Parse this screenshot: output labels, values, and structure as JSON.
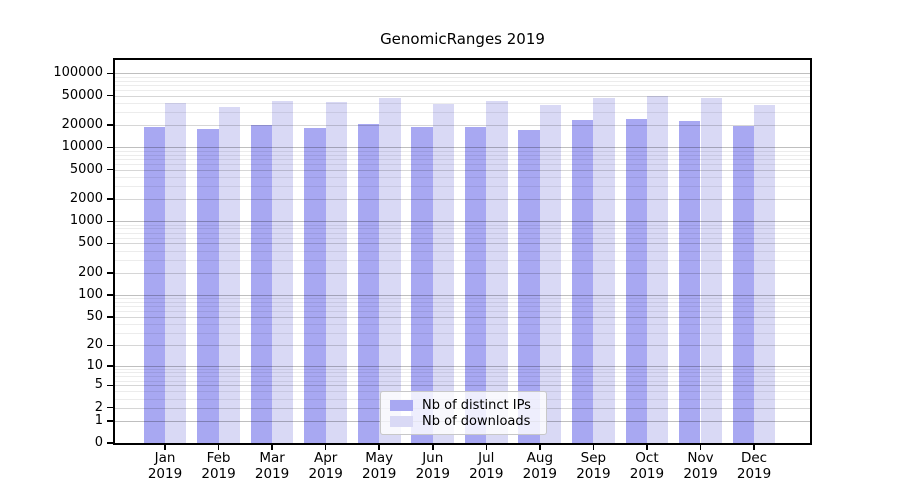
{
  "title": "GenomicRanges 2019",
  "chart_data": {
    "type": "bar",
    "title": "GenomicRanges 2019",
    "categories": [
      "Jan 2019",
      "Feb 2019",
      "Mar 2019",
      "Apr 2019",
      "May 2019",
      "Jun 2019",
      "Jul 2019",
      "Aug 2019",
      "Sep 2019",
      "Oct 2019",
      "Nov 2019",
      "Dec 2019"
    ],
    "series": [
      {
        "name": "Nb of distinct IPs",
        "color": "#a8a8f2",
        "values": [
          18800,
          17900,
          19800,
          18500,
          20900,
          18800,
          18800,
          17400,
          23400,
          23900,
          23000,
          19200
        ]
      },
      {
        "name": "Nb of downloads",
        "color": "#d9d9f5",
        "values": [
          39500,
          35000,
          42000,
          40800,
          46300,
          38100,
          42500,
          37000,
          46900,
          48900,
          46900,
          37300
        ]
      }
    ],
    "yticks": [
      0,
      1,
      2,
      5,
      10,
      20,
      50,
      100,
      200,
      500,
      1000,
      2000,
      5000,
      10000,
      20000,
      50000,
      100000
    ],
    "scale": "log1p",
    "ylim": [
      0,
      150000
    ],
    "xlabel": "",
    "ylabel": "",
    "grid": "on",
    "legend_position": "inside-bottom-center",
    "background": "#ffffff"
  }
}
